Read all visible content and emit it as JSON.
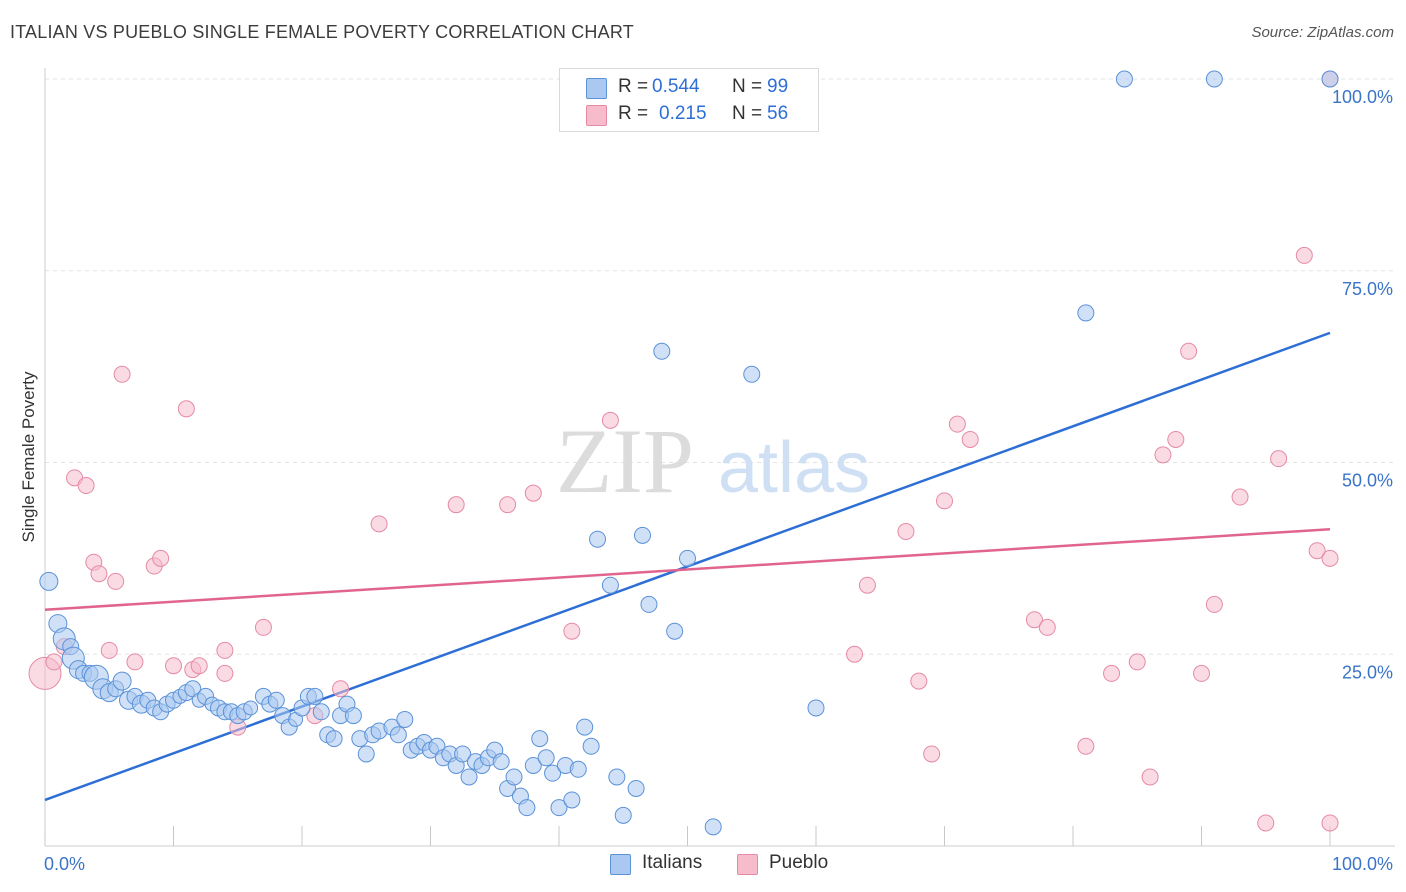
{
  "title": "ITALIAN VS PUEBLO SINGLE FEMALE POVERTY CORRELATION CHART",
  "source": "Source: ZipAtlas.com",
  "watermark": {
    "zip": "ZIP",
    "atlas": "atlas"
  },
  "legend": {
    "italians": {
      "r_label": "R =",
      "r_value": "0.544",
      "n_label": "N =",
      "n_value": "99"
    },
    "pueblo": {
      "r_label": "R =",
      "r_value": "0.215",
      "n_label": "N =",
      "n_value": "56"
    }
  },
  "colors": {
    "italians_fill": "#aac8f0",
    "italians_stroke": "#5b92d8",
    "italians_line": "#2e6fd6",
    "pueblo_fill": "#f6bccc",
    "pueblo_stroke": "#e58aa6",
    "pueblo_line": "#e0648e",
    "tick_label": "#3a74c8",
    "grid": "#e3e3e3"
  },
  "chart_data": {
    "type": "scatter",
    "title": "ITALIAN VS PUEBLO SINGLE FEMALE POVERTY CORRELATION CHART",
    "xlabel": "",
    "ylabel": "Single Female Poverty",
    "xlim": [
      0,
      100
    ],
    "ylim": [
      0,
      100
    ],
    "x_tick_labels": [
      "0.0%",
      "100.0%"
    ],
    "y_tick_labels": [
      "25.0%",
      "50.0%",
      "75.0%",
      "100.0%"
    ],
    "y_ticks": [
      25,
      50,
      75,
      100
    ],
    "grid": "horizontal dashed",
    "legend_position": "top-center",
    "series": [
      {
        "name": "Italians",
        "trend": {
          "x": [
            0,
            100
          ],
          "y": [
            6.0,
            66.9
          ]
        },
        "points": [
          [
            0.3,
            34.5,
            9
          ],
          [
            1.0,
            29.0,
            9
          ],
          [
            1.5,
            27.0,
            11
          ],
          [
            2.0,
            26.0,
            8
          ],
          [
            2.2,
            24.5,
            11
          ],
          [
            2.6,
            23.0,
            9
          ],
          [
            3.0,
            22.5,
            8
          ],
          [
            3.5,
            22.5,
            8
          ],
          [
            4.0,
            22.0,
            12
          ],
          [
            4.5,
            20.5,
            10
          ],
          [
            5.0,
            20.0,
            9
          ],
          [
            5.5,
            20.5,
            8
          ],
          [
            6.0,
            21.5,
            9
          ],
          [
            6.5,
            19.0,
            9
          ],
          [
            7.0,
            19.5,
            8
          ],
          [
            7.5,
            18.5,
            9
          ],
          [
            8.0,
            19.0,
            8
          ],
          [
            8.5,
            18.0,
            8
          ],
          [
            9.0,
            17.5,
            8
          ],
          [
            9.5,
            18.5,
            8
          ],
          [
            10.0,
            19.0,
            8
          ],
          [
            10.5,
            19.5,
            7
          ],
          [
            11.0,
            20.0,
            8
          ],
          [
            11.5,
            20.5,
            8
          ],
          [
            12.0,
            19.0,
            7
          ],
          [
            12.5,
            19.5,
            8
          ],
          [
            13.0,
            18.5,
            7
          ],
          [
            13.5,
            18.0,
            8
          ],
          [
            14.0,
            17.5,
            8
          ],
          [
            14.5,
            17.5,
            8
          ],
          [
            15.0,
            17.0,
            8
          ],
          [
            15.5,
            17.5,
            8
          ],
          [
            16.0,
            18.0,
            7
          ],
          [
            17.0,
            19.5,
            8
          ],
          [
            17.5,
            18.5,
            8
          ],
          [
            18.0,
            19.0,
            8
          ],
          [
            18.5,
            17.0,
            8
          ],
          [
            19.0,
            15.5,
            8
          ],
          [
            19.5,
            16.5,
            7
          ],
          [
            20.0,
            18.0,
            8
          ],
          [
            20.5,
            19.5,
            8
          ],
          [
            21.0,
            19.5,
            8
          ],
          [
            21.5,
            17.5,
            8
          ],
          [
            22.0,
            14.5,
            8
          ],
          [
            22.5,
            14.0,
            8
          ],
          [
            23.0,
            17.0,
            8
          ],
          [
            23.5,
            18.5,
            8
          ],
          [
            24.0,
            17.0,
            8
          ],
          [
            24.5,
            14.0,
            8
          ],
          [
            25.0,
            12.0,
            8
          ],
          [
            25.5,
            14.5,
            8
          ],
          [
            26.0,
            15.0,
            8
          ],
          [
            27.0,
            15.5,
            8
          ],
          [
            27.5,
            14.5,
            8
          ],
          [
            28.0,
            16.5,
            8
          ],
          [
            28.5,
            12.5,
            8
          ],
          [
            29.0,
            13.0,
            8
          ],
          [
            29.5,
            13.5,
            8
          ],
          [
            30.0,
            12.5,
            8
          ],
          [
            30.5,
            13.0,
            8
          ],
          [
            31.0,
            11.5,
            8
          ],
          [
            31.5,
            12.0,
            8
          ],
          [
            32.0,
            10.5,
            8
          ],
          [
            32.5,
            12.0,
            8
          ],
          [
            33.0,
            9.0,
            8
          ],
          [
            33.5,
            11.0,
            8
          ],
          [
            34.0,
            10.5,
            8
          ],
          [
            34.5,
            11.5,
            8
          ],
          [
            35.0,
            12.5,
            8
          ],
          [
            35.5,
            11.0,
            8
          ],
          [
            36.0,
            7.5,
            8
          ],
          [
            36.5,
            9.0,
            8
          ],
          [
            37.0,
            6.5,
            8
          ],
          [
            37.5,
            5.0,
            8
          ],
          [
            38.0,
            10.5,
            8
          ],
          [
            38.5,
            14.0,
            8
          ],
          [
            39.0,
            11.5,
            8
          ],
          [
            39.5,
            9.5,
            8
          ],
          [
            40.0,
            5.0,
            8
          ],
          [
            40.5,
            10.5,
            8
          ],
          [
            41.0,
            6.0,
            8
          ],
          [
            41.5,
            10.0,
            8
          ],
          [
            42.0,
            15.5,
            8
          ],
          [
            42.5,
            13.0,
            8
          ],
          [
            43.0,
            40.0,
            8
          ],
          [
            44.0,
            34.0,
            8
          ],
          [
            44.5,
            9.0,
            8
          ],
          [
            45.0,
            4.0,
            8
          ],
          [
            46.0,
            7.5,
            8
          ],
          [
            46.5,
            40.5,
            8
          ],
          [
            47.0,
            31.5,
            8
          ],
          [
            48.0,
            64.5,
            8
          ],
          [
            49.0,
            28.0,
            8
          ],
          [
            50.0,
            37.5,
            8
          ],
          [
            52.0,
            2.5,
            8
          ],
          [
            55.0,
            61.5,
            8
          ],
          [
            60.0,
            18.0,
            8
          ],
          [
            81.0,
            69.5,
            8
          ],
          [
            84.0,
            100.0,
            8
          ],
          [
            91.0,
            100.0,
            8
          ],
          [
            100.0,
            100.0,
            8
          ]
        ]
      },
      {
        "name": "Pueblo",
        "trend": {
          "x": [
            0,
            100
          ],
          "y": [
            30.8,
            41.3
          ]
        },
        "points": [
          [
            0.0,
            22.5,
            16
          ],
          [
            0.7,
            24.0,
            8
          ],
          [
            1.5,
            26.0,
            8
          ],
          [
            2.3,
            48.0,
            8
          ],
          [
            3.2,
            47.0,
            8
          ],
          [
            3.8,
            37.0,
            8
          ],
          [
            4.2,
            35.5,
            8
          ],
          [
            5.0,
            25.5,
            8
          ],
          [
            5.5,
            34.5,
            8
          ],
          [
            6.0,
            61.5,
            8
          ],
          [
            7.0,
            24.0,
            8
          ],
          [
            8.5,
            36.5,
            8
          ],
          [
            9.0,
            37.5,
            8
          ],
          [
            10.0,
            23.5,
            8
          ],
          [
            11.0,
            57.0,
            8
          ],
          [
            11.5,
            23.0,
            8
          ],
          [
            12.0,
            23.5,
            8
          ],
          [
            14.0,
            25.5,
            8
          ],
          [
            14.0,
            22.5,
            8
          ],
          [
            15.0,
            15.5,
            8
          ],
          [
            17.0,
            28.5,
            8
          ],
          [
            21.0,
            17.0,
            8
          ],
          [
            23.0,
            20.5,
            8
          ],
          [
            26.0,
            42.0,
            8
          ],
          [
            32.0,
            44.5,
            8
          ],
          [
            36.0,
            44.5,
            8
          ],
          [
            38.0,
            46.0,
            8
          ],
          [
            41.0,
            28.0,
            8
          ],
          [
            44.0,
            55.5,
            8
          ],
          [
            63.0,
            25.0,
            8
          ],
          [
            64.0,
            34.0,
            8
          ],
          [
            67.0,
            41.0,
            8
          ],
          [
            68.0,
            21.5,
            8
          ],
          [
            69.0,
            12.0,
            8
          ],
          [
            70.0,
            45.0,
            8
          ],
          [
            71.0,
            55.0,
            8
          ],
          [
            72.0,
            53.0,
            8
          ],
          [
            77.0,
            29.5,
            8
          ],
          [
            78.0,
            28.5,
            8
          ],
          [
            81.0,
            13.0,
            8
          ],
          [
            83.0,
            22.5,
            8
          ],
          [
            85.0,
            24.0,
            8
          ],
          [
            86.0,
            9.0,
            8
          ],
          [
            87.0,
            51.0,
            8
          ],
          [
            88.0,
            53.0,
            8
          ],
          [
            89.0,
            64.5,
            8
          ],
          [
            90.0,
            22.5,
            8
          ],
          [
            91.0,
            31.5,
            8
          ],
          [
            93.0,
            45.5,
            8
          ],
          [
            95.0,
            3.0,
            8
          ],
          [
            96.0,
            50.5,
            8
          ],
          [
            98.0,
            77.0,
            8
          ],
          [
            99.0,
            38.5,
            8
          ],
          [
            100.0,
            37.5,
            8
          ],
          [
            100.0,
            100.0,
            8
          ],
          [
            100.0,
            3.0,
            8
          ]
        ]
      }
    ]
  }
}
